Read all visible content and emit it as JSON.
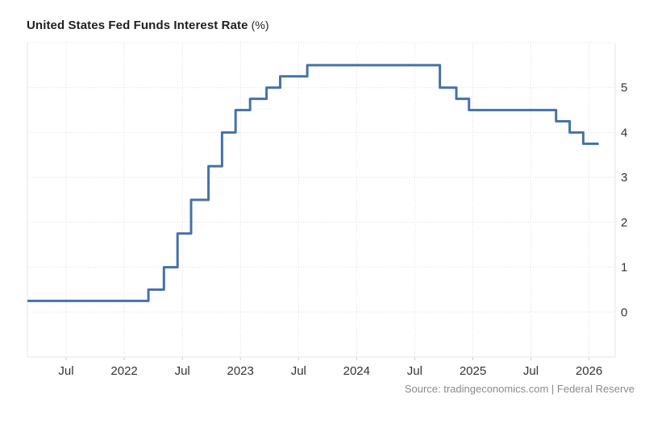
{
  "title": {
    "main": "United States Fed Funds Interest Rate",
    "unit": "(%)"
  },
  "source": {
    "text": "Source: tradingeconomics.com | Federal Reserve"
  },
  "colors": {
    "line": "#4572a7",
    "grid": "#dedede",
    "plot_border": "#e6e6e6",
    "tick_mark": "#cccccc",
    "axis_text": "#333333",
    "title_text": "#1f1f1f",
    "source_text": "#8a8a8a",
    "background": "#ffffff"
  },
  "chart_data": {
    "type": "line",
    "step": true,
    "title": "United States Fed Funds Interest Rate (%)",
    "unit": "%",
    "legend": "none",
    "grid": "dotted",
    "series": [
      {
        "name": "Fed Funds Interest Rate",
        "points": [
          {
            "date": "2021-03",
            "m": -4.0,
            "value": 0.25
          },
          {
            "date": "2022-03-17",
            "m": 8.5,
            "value": 0.5
          },
          {
            "date": "2022-05-05",
            "m": 10.1,
            "value": 1.0
          },
          {
            "date": "2022-06-16",
            "m": 11.5,
            "value": 1.75
          },
          {
            "date": "2022-07-28",
            "m": 12.9,
            "value": 2.5
          },
          {
            "date": "2022-09-22",
            "m": 14.7,
            "value": 3.25
          },
          {
            "date": "2022-11-03",
            "m": 16.1,
            "value": 4.0
          },
          {
            "date": "2022-12-15",
            "m": 17.5,
            "value": 4.5
          },
          {
            "date": "2023-02-02",
            "m": 19.0,
            "value": 4.75
          },
          {
            "date": "2023-03-23",
            "m": 20.7,
            "value": 5.0
          },
          {
            "date": "2023-05-04",
            "m": 22.1,
            "value": 5.25
          },
          {
            "date": "2023-07-27",
            "m": 24.9,
            "value": 5.5
          },
          {
            "date": "2024-09-19",
            "m": 38.6,
            "value": 5.0
          },
          {
            "date": "2024-11-08",
            "m": 40.3,
            "value": 4.75
          },
          {
            "date": "2024-12-19",
            "m": 41.6,
            "value": 4.5
          },
          {
            "date": "2025-09-18",
            "m": 50.6,
            "value": 4.25
          },
          {
            "date": "2025-10-30",
            "m": 52.0,
            "value": 4.0
          },
          {
            "date": "2025-12-11",
            "m": 53.4,
            "value": 3.75
          },
          {
            "date": "2026-02",
            "m": 55.0,
            "value": 3.75
          }
        ]
      }
    ],
    "x_axis": {
      "range_m": [
        -4.0,
        56.7
      ],
      "range_dates": [
        "2021-03",
        "2026-03"
      ],
      "ticks": [
        {
          "label": "Jul",
          "m": 0
        },
        {
          "label": "2022",
          "m": 6
        },
        {
          "label": "Jul",
          "m": 12
        },
        {
          "label": "2023",
          "m": 18
        },
        {
          "label": "Jul",
          "m": 24
        },
        {
          "label": "2024",
          "m": 30
        },
        {
          "label": "Jul",
          "m": 36
        },
        {
          "label": "2025",
          "m": 42
        },
        {
          "label": "Jul",
          "m": 48
        },
        {
          "label": "2026",
          "m": 54
        }
      ]
    },
    "y_axis": {
      "position": "right",
      "range": [
        -1,
        6
      ],
      "ticks": [
        0,
        1,
        2,
        3,
        4,
        5
      ],
      "grid_ticks": [
        0,
        1,
        2,
        3,
        4,
        5,
        6
      ]
    }
  }
}
